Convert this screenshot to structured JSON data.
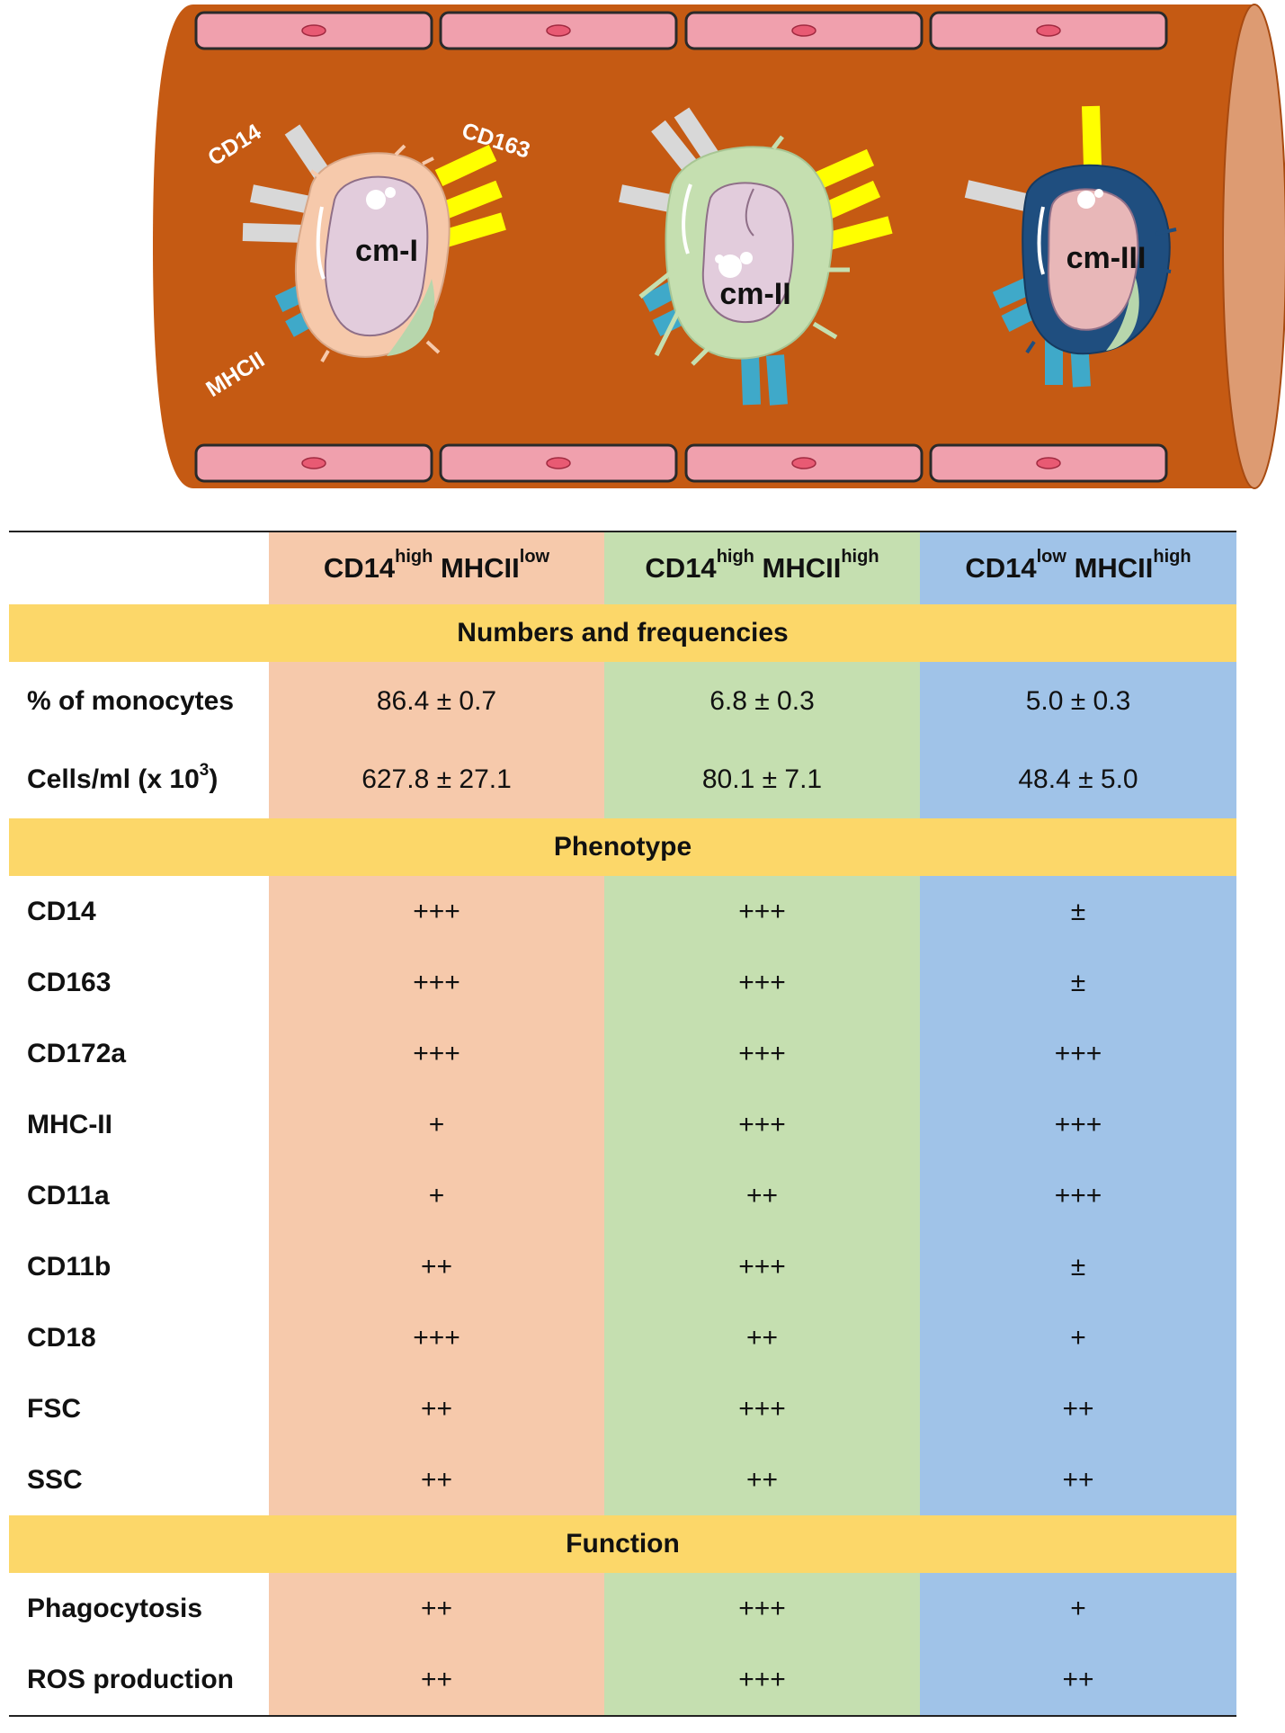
{
  "illustration": {
    "cells": [
      {
        "label": "cm-I"
      },
      {
        "label": "cm-II"
      },
      {
        "label": "cm-III"
      }
    ],
    "marker_labels": {
      "cd14": "CD14",
      "cd163": "CD163",
      "mhcii": "MHCII"
    },
    "colors": {
      "vessel": "#c55a13",
      "vessel_end": "#dd9b72",
      "endothelium": "#f0a0ad",
      "cd14_receptor": "#d8d8d8",
      "cd163_receptor": "#ffff00",
      "mhcii_receptor": "#3fa9c9",
      "cm_I": "#f6c9ab",
      "cm_II": "#c5dfb0",
      "cm_III": "#1f4e7f",
      "nucleus": "#e2ccdc"
    }
  },
  "table": {
    "headers": [
      {
        "main": "CD14",
        "sup1": "high",
        "second": " MHCII",
        "sup2": "low"
      },
      {
        "main": "CD14",
        "sup1": "high",
        "second": " MHCII",
        "sup2": "high"
      },
      {
        "main": "CD14",
        "sup1": "low",
        "second": " MHCII",
        "sup2": "high"
      }
    ],
    "sections": {
      "numbers": "Numbers and frequencies",
      "phenotype": "Phenotype",
      "function": "Function"
    },
    "numbers_rows": [
      {
        "label": "% of monocytes",
        "values": [
          "86.4 ± 0.7",
          "6.8 ± 0.3",
          "5.0 ± 0.3"
        ]
      },
      {
        "label": "Cells/ml (x 10",
        "label_sup": "3",
        "label_end": ")",
        "values": [
          "627.8 ± 27.1",
          "80.1 ± 7.1",
          "48.4 ± 5.0"
        ]
      }
    ],
    "phenotype_rows": [
      {
        "label": "CD14",
        "values": [
          "+++",
          "+++",
          "±"
        ]
      },
      {
        "label": "CD163",
        "values": [
          "+++",
          "+++",
          "±"
        ]
      },
      {
        "label": "CD172a",
        "values": [
          "+++",
          "+++",
          "+++"
        ]
      },
      {
        "label": "MHC-II",
        "values": [
          "+",
          "+++",
          "+++"
        ]
      },
      {
        "label": "CD11a",
        "values": [
          "+",
          "++",
          "+++"
        ]
      },
      {
        "label": "CD11b",
        "values": [
          "++",
          "+++",
          "±"
        ]
      },
      {
        "label": "CD18",
        "values": [
          "+++",
          "++",
          "+"
        ]
      },
      {
        "label": "FSC",
        "values": [
          "++",
          "+++",
          "++"
        ]
      },
      {
        "label": "SSC",
        "values": [
          "++",
          "++",
          "++"
        ]
      }
    ],
    "function_rows": [
      {
        "label": "Phagocytosis",
        "values": [
          "++",
          "+++",
          "+"
        ]
      },
      {
        "label": "ROS production",
        "values": [
          "++",
          "+++",
          "++"
        ]
      }
    ],
    "colors": {
      "col1": "#f6c9ab",
      "col2": "#c5dfb0",
      "col3": "#a0c3e8",
      "section": "#fcd769"
    }
  }
}
